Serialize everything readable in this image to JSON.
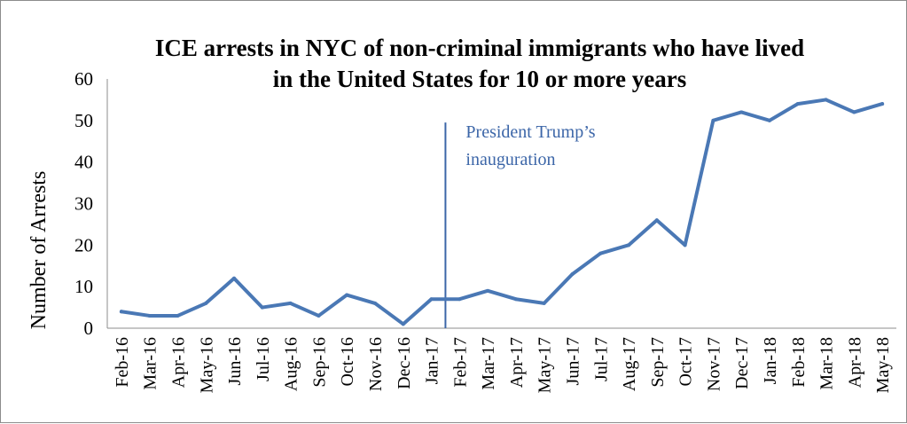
{
  "chart_data": {
    "type": "line",
    "title_line1": "ICE arrests in NYC of non-criminal immigrants who have lived",
    "title_line2": "in the United States for 10 or more years",
    "xlabel": "",
    "ylabel": "Number of Arrests",
    "ylim": [
      0,
      60
    ],
    "yticks": [
      0,
      10,
      20,
      30,
      40,
      50,
      60
    ],
    "grid": false,
    "legend": "none",
    "categories": [
      "Feb-16",
      "Mar-16",
      "Apr-16",
      "May-16",
      "Jun-16",
      "Jul-16",
      "Aug-16",
      "Sep-16",
      "Oct-16",
      "Nov-16",
      "Dec-16",
      "Jan-17",
      "Feb-17",
      "Mar-17",
      "Apr-17",
      "May-17",
      "Jun-17",
      "Jul-17",
      "Aug-17",
      "Sep-17",
      "Oct-17",
      "Nov-17",
      "Dec-17",
      "Jan-18",
      "Feb-18",
      "Mar-18",
      "Apr-18",
      "May-18"
    ],
    "series": [
      {
        "color": "#4a78b5",
        "values": [
          4,
          3,
          3,
          6,
          12,
          5,
          6,
          3,
          8,
          6,
          1,
          7,
          7,
          9,
          7,
          6,
          13,
          18,
          20,
          26,
          20,
          50,
          52,
          50,
          54,
          55,
          52,
          54
        ]
      }
    ],
    "annotation": {
      "at_category": "Feb-17",
      "line1": "President Trump’s",
      "line2": "inauguration",
      "color": "#3c66a8"
    }
  }
}
